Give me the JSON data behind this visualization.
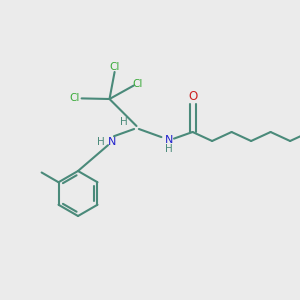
{
  "background_color": "#ebebeb",
  "bond_color": "#4a8a7a",
  "cl_color": "#3aaa3a",
  "n_color": "#2222cc",
  "o_color": "#cc2222",
  "line_width": 1.5,
  "font_size_label": 7.5,
  "font_size_atom": 8.0,
  "figsize": [
    3.0,
    3.0
  ],
  "dpi": 100,
  "xlim": [
    0,
    10
  ],
  "ylim": [
    0,
    10
  ]
}
